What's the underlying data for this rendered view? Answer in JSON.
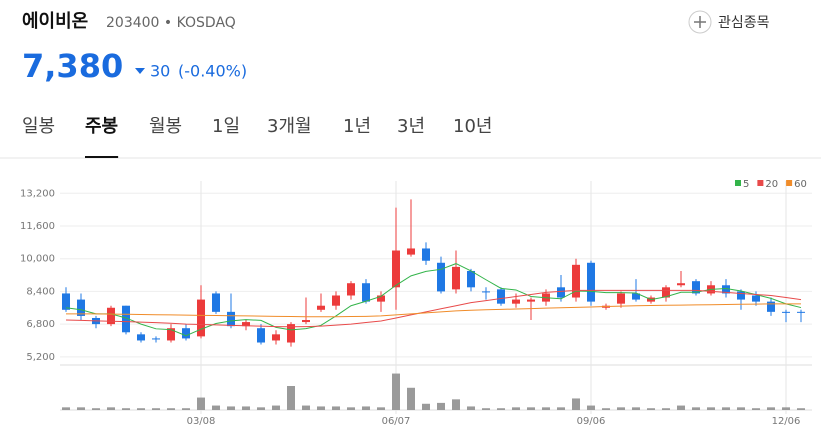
{
  "header": {
    "name": "에이비온",
    "code": "203400 • KOSDAQ",
    "price": "7,380",
    "change": "30",
    "change_pct": "(-0.40%)",
    "watch": "관심종목"
  },
  "tabs": {
    "items": [
      "일봉",
      "주봉",
      "월봉",
      "1일",
      "3개월",
      "1년",
      "3년",
      "10년"
    ],
    "selected": 1
  },
  "chart_data": {
    "type": "candlestick",
    "categories": [
      null,
      null,
      null,
      null,
      null,
      null,
      null,
      null,
      null,
      "03/08",
      null,
      null,
      null,
      null,
      null,
      null,
      null,
      null,
      null,
      null,
      null,
      null,
      "06/07",
      null,
      null,
      null,
      null,
      null,
      null,
      null,
      null,
      null,
      null,
      null,
      null,
      "09/06",
      null,
      null,
      null,
      null,
      null,
      null,
      null,
      null,
      null,
      null,
      null,
      null,
      "12/06",
      null
    ],
    "open": [
      8300,
      8000,
      7100,
      6800,
      7700,
      6300,
      6100,
      6000,
      6600,
      6200,
      8300,
      7400,
      6700,
      6600,
      6000,
      5900,
      6900,
      7500,
      7700,
      8200,
      8800,
      7900,
      8600,
      10200,
      10500,
      9800,
      8500,
      9400,
      8400,
      8500,
      7800,
      7900,
      7900,
      8600,
      8100,
      9800,
      7600,
      7800,
      8300,
      7900,
      8100,
      8700,
      8900,
      8300,
      8700,
      8400,
      8200,
      7900,
      7400,
      7400
    ],
    "high": [
      8600,
      8300,
      7200,
      7700,
      7700,
      6400,
      6200,
      6800,
      6800,
      8700,
      8400,
      8300,
      7000,
      6800,
      6500,
      6900,
      8100,
      8300,
      8400,
      8900,
      9000,
      8400,
      12500,
      12900,
      10800,
      10100,
      10400,
      9500,
      8600,
      8600,
      8300,
      8100,
      8500,
      9200,
      10000,
      9900,
      7800,
      8400,
      9000,
      8200,
      8700,
      9400,
      9000,
      8900,
      9000,
      8500,
      8400,
      8100,
      7500,
      7500
    ],
    "low": [
      7400,
      7000,
      6600,
      6700,
      6300,
      5900,
      5900,
      5900,
      6000,
      6100,
      7300,
      6600,
      6500,
      5800,
      5800,
      5700,
      6800,
      7400,
      7500,
      8000,
      7800,
      7400,
      7500,
      10100,
      9700,
      8300,
      8300,
      8400,
      8000,
      7700,
      7600,
      7000,
      7700,
      7900,
      7900,
      7700,
      7500,
      7600,
      7900,
      7800,
      7900,
      8600,
      8200,
      8200,
      8100,
      7500,
      7700,
      7200,
      6900,
      6900
    ],
    "close": [
      7500,
      7200,
      6800,
      7600,
      6400,
      6000,
      6050,
      6600,
      6100,
      8000,
      7400,
      6700,
      6900,
      5900,
      6300,
      6800,
      7000,
      7700,
      8200,
      8800,
      7900,
      8200,
      10400,
      10500,
      9900,
      8400,
      9600,
      8600,
      8350,
      7800,
      8000,
      8000,
      8300,
      8100,
      9700,
      7900,
      7700,
      8300,
      8000,
      8100,
      8600,
      8800,
      8300,
      8700,
      8300,
      8000,
      7900,
      7400,
      7350,
      7380
    ],
    "volume": [
      3,
      3,
      2,
      3,
      2,
      2,
      2,
      2,
      2,
      14,
      5,
      4,
      4,
      3,
      5,
      27,
      5,
      4,
      4,
      3,
      4,
      3,
      41,
      25,
      7,
      8,
      12,
      4,
      2,
      2,
      3,
      3,
      3,
      3,
      13,
      5,
      2,
      3,
      3,
      2,
      2,
      5,
      3,
      3,
      3,
      3,
      2,
      3,
      3,
      2
    ],
    "up_color": "#ec3b3b",
    "down_color": "#1f78e4",
    "volume_color": "#9a9a9a",
    "series": [
      {
        "name": "5",
        "color": "#33b44a",
        "values": [
          7600,
          7500,
          7300,
          7300,
          7100,
          6800,
          6570,
          6530,
          6230,
          6550,
          6830,
          6960,
          7020,
          6980,
          6640,
          6520,
          6580,
          6740,
          7200,
          7700,
          7920,
          8160,
          8700,
          9160,
          9380,
          9480,
          9760,
          9400,
          8970,
          8550,
          8470,
          8150,
          8090,
          8040,
          8420,
          8400,
          8340,
          8340,
          8320,
          8000,
          8140,
          8360,
          8360,
          8500,
          8540,
          8420,
          8240,
          8060,
          7790,
          7610
        ]
      },
      {
        "name": "20",
        "color": "#e84a4a",
        "values": [
          7000,
          6980,
          6960,
          6940,
          6920,
          6900,
          6870,
          6840,
          6800,
          6780,
          6760,
          6740,
          6720,
          6700,
          6680,
          6670,
          6680,
          6700,
          6750,
          6800,
          6880,
          6950,
          7100,
          7250,
          7400,
          7550,
          7700,
          7850,
          7950,
          8050,
          8150,
          8250,
          8350,
          8400,
          8450,
          8450,
          8450,
          8450,
          8450,
          8450,
          8450,
          8450,
          8450,
          8400,
          8350,
          8300,
          8250,
          8200,
          8100,
          8000
        ]
      },
      {
        "name": "60",
        "color": "#f08c2a",
        "values": [
          7300,
          7300,
          7300,
          7290,
          7280,
          7270,
          7260,
          7250,
          7240,
          7230,
          7220,
          7210,
          7200,
          7190,
          7180,
          7170,
          7160,
          7160,
          7160,
          7170,
          7180,
          7200,
          7250,
          7300,
          7350,
          7400,
          7450,
          7480,
          7500,
          7520,
          7540,
          7560,
          7580,
          7600,
          7620,
          7640,
          7660,
          7680,
          7700,
          7710,
          7720,
          7730,
          7740,
          7750,
          7760,
          7770,
          7780,
          7790,
          7790,
          7790
        ]
      }
    ],
    "ylim": [
      4800,
      13800
    ],
    "yticks": [
      {
        "value": 5200,
        "label": "5,200"
      },
      {
        "value": 6800,
        "label": "6,800"
      },
      {
        "value": 8400,
        "label": "8,400"
      },
      {
        "value": 10000,
        "label": "10,000"
      },
      {
        "value": 11600,
        "label": "11,600"
      },
      {
        "value": 13200,
        "label": "13,200"
      }
    ],
    "vlim": [
      0,
      45
    ],
    "grid": true
  }
}
